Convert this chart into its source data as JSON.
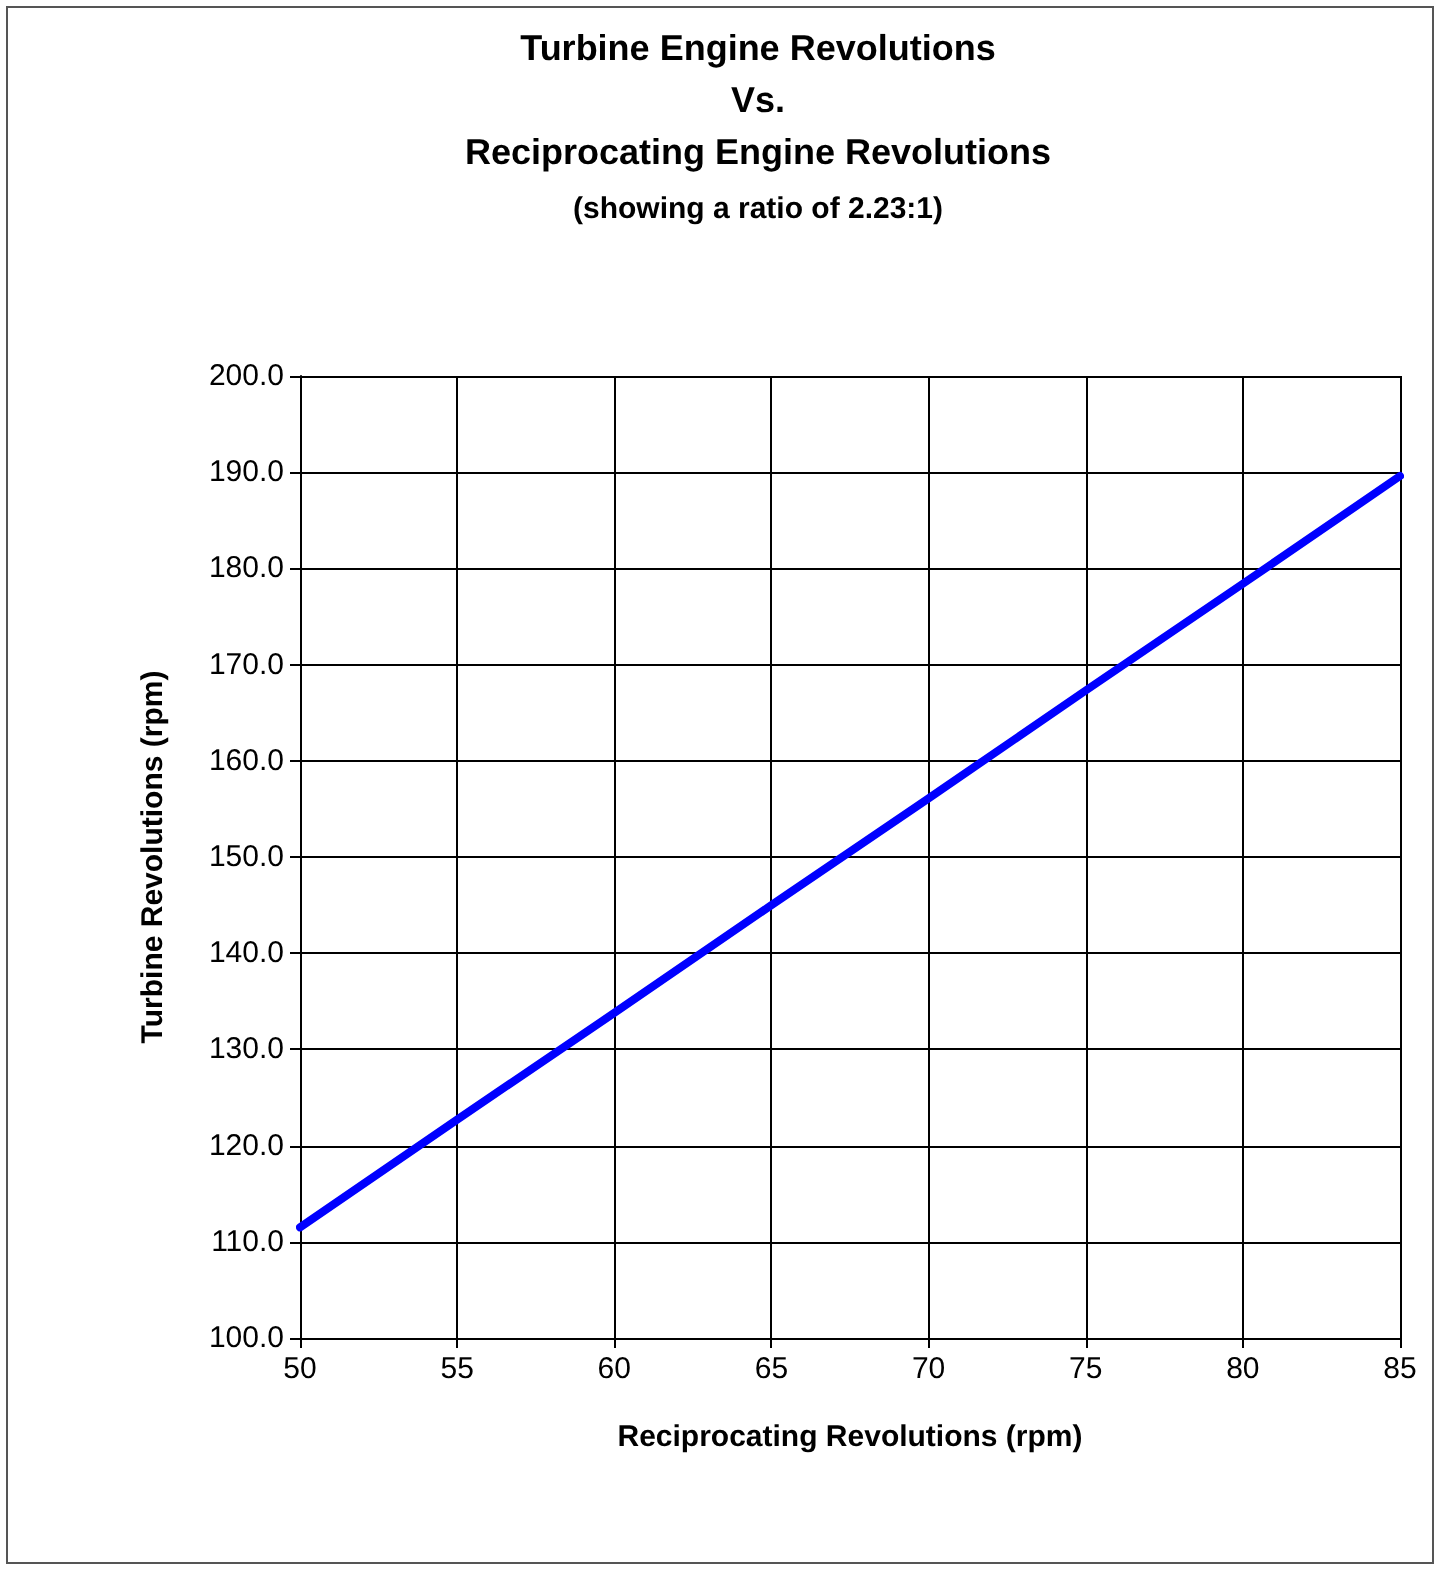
{
  "chart_data": {
    "type": "line",
    "title": "Turbine Engine Revolutions\nVs.\nReciprocating Engine Revolutions",
    "subtitle": "(showing a ratio of 2.23:1)",
    "xlabel": "Reciprocating Revolutions (rpm)",
    "ylabel": "Turbine Revolutions (rpm)",
    "x": [
      50,
      55,
      60,
      65,
      70,
      75,
      80,
      85
    ],
    "series": [
      {
        "color": "#0000ff",
        "values": [
          111.5,
          122.7,
          133.8,
          145,
          156.1,
          167.3,
          178.4,
          189.6
        ]
      }
    ],
    "xlim": [
      50,
      85
    ],
    "xticks": [
      50,
      55,
      60,
      65,
      70,
      75,
      80,
      85
    ],
    "ylim": [
      100,
      200
    ],
    "yticks": [
      {
        "value": 100,
        "label": "100.0"
      },
      {
        "value": 110,
        "label": "110.0"
      },
      {
        "value": 120,
        "label": "120.0"
      },
      {
        "value": 130,
        "label": "130.0"
      },
      {
        "value": 140,
        "label": "140.0"
      },
      {
        "value": 150,
        "label": "150.0"
      },
      {
        "value": 160,
        "label": "160.0"
      },
      {
        "value": 170,
        "label": "170.0"
      },
      {
        "value": 180,
        "label": "180.0"
      },
      {
        "value": 190,
        "label": "190.0"
      },
      {
        "value": 200,
        "label": "200.0"
      }
    ],
    "grid": true,
    "marker": "none",
    "line_style": "solid"
  }
}
